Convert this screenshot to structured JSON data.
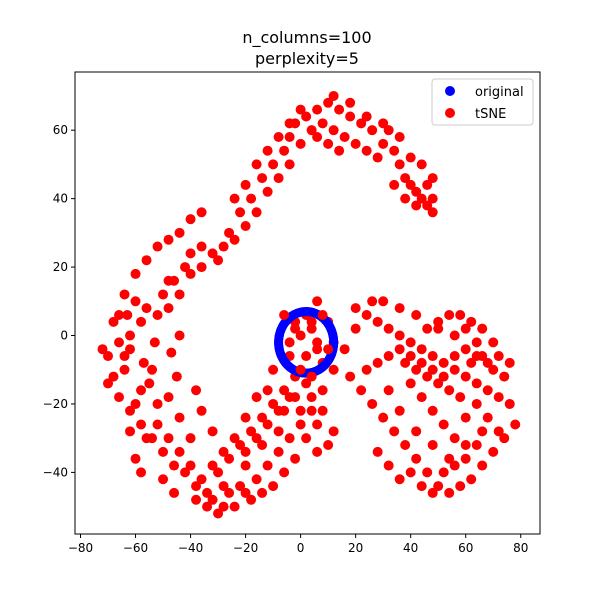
{
  "chart_data": {
    "type": "scatter",
    "title_line1": "n_columns=100",
    "title_line2": "perplexity=5",
    "xlabel": "",
    "ylabel": "",
    "xlim": [
      -82,
      87
    ],
    "ylim": [
      -58,
      77
    ],
    "xticks": [
      -80,
      -60,
      -40,
      -20,
      0,
      20,
      40,
      60,
      80
    ],
    "yticks": [
      -40,
      -20,
      0,
      20,
      40,
      60
    ],
    "grid": false,
    "legend_position": "upper right",
    "series": [
      {
        "name": "original",
        "color": "#0000ff",
        "shape": "ring",
        "center": [
          2,
          -2
        ],
        "radius_x": 10,
        "radius_y": 9,
        "points": 200
      },
      {
        "name": "tSNE",
        "color": "#ff0000",
        "shape": "clusters",
        "points": [
          [
            -70,
            -6
          ],
          [
            -68,
            -12
          ],
          [
            -66,
            -2
          ],
          [
            -64,
            -10
          ],
          [
            -62,
            0
          ],
          [
            -63,
            6
          ],
          [
            -60,
            10
          ],
          [
            -58,
            4
          ],
          [
            -57,
            -8
          ],
          [
            -55,
            -14
          ],
          [
            -53,
            -2
          ],
          [
            -52,
            6
          ],
          [
            -50,
            12
          ],
          [
            -48,
            8
          ],
          [
            -47,
            -5
          ],
          [
            -45,
            -12
          ],
          [
            -44,
            0
          ],
          [
            -46,
            16
          ],
          [
            -42,
            20
          ],
          [
            -40,
            24
          ],
          [
            -36,
            26
          ],
          [
            -30,
            22
          ],
          [
            -26,
            30
          ],
          [
            -22,
            36
          ],
          [
            -18,
            40
          ],
          [
            -14,
            46
          ],
          [
            -10,
            50
          ],
          [
            -6,
            54
          ],
          [
            -4,
            58
          ],
          [
            -2,
            62
          ],
          [
            2,
            64
          ],
          [
            6,
            66
          ],
          [
            10,
            68
          ],
          [
            14,
            66
          ],
          [
            18,
            64
          ],
          [
            22,
            62
          ],
          [
            26,
            60
          ],
          [
            30,
            56
          ],
          [
            34,
            54
          ],
          [
            36,
            50
          ],
          [
            38,
            46
          ],
          [
            40,
            44
          ],
          [
            42,
            42
          ],
          [
            44,
            40
          ],
          [
            46,
            38
          ],
          [
            48,
            36
          ],
          [
            44,
            50
          ],
          [
            48,
            46
          ],
          [
            40,
            52
          ],
          [
            32,
            60
          ],
          [
            -72,
            -4
          ],
          [
            -70,
            -14
          ],
          [
            -68,
            4
          ],
          [
            -66,
            -18
          ],
          [
            -64,
            12
          ],
          [
            -62,
            -22
          ],
          [
            -60,
            18
          ],
          [
            -58,
            -26
          ],
          [
            -56,
            22
          ],
          [
            -54,
            -30
          ],
          [
            -52,
            26
          ],
          [
            -50,
            -34
          ],
          [
            -48,
            28
          ],
          [
            -46,
            -38
          ],
          [
            -44,
            30
          ],
          [
            -42,
            -40
          ],
          [
            -40,
            34
          ],
          [
            -38,
            -44
          ],
          [
            -36,
            36
          ],
          [
            -34,
            -46
          ],
          [
            -32,
            -48
          ],
          [
            -28,
            -50
          ],
          [
            -24,
            -50
          ],
          [
            -20,
            -46
          ],
          [
            -16,
            -42
          ],
          [
            -12,
            -38
          ],
          [
            -8,
            -34
          ],
          [
            -4,
            -30
          ],
          [
            0,
            -26
          ],
          [
            4,
            -22
          ],
          [
            -30,
            -40
          ],
          [
            -26,
            -36
          ],
          [
            -22,
            -32
          ],
          [
            -18,
            -28
          ],
          [
            -14,
            -24
          ],
          [
            -10,
            -20
          ],
          [
            -6,
            -16
          ],
          [
            -2,
            -12
          ],
          [
            -20,
            -38
          ],
          [
            -28,
            -44
          ],
          [
            -40,
            -30
          ],
          [
            -44,
            -24
          ],
          [
            -48,
            -18
          ],
          [
            -52,
            -20
          ],
          [
            -56,
            -30
          ],
          [
            -60,
            -36
          ],
          [
            -62,
            -28
          ],
          [
            -58,
            -40
          ],
          [
            -50,
            -42
          ],
          [
            -46,
            -46
          ],
          [
            8,
            -16
          ],
          [
            12,
            -10
          ],
          [
            16,
            -4
          ],
          [
            20,
            2
          ],
          [
            24,
            6
          ],
          [
            28,
            4
          ],
          [
            32,
            2
          ],
          [
            36,
            0
          ],
          [
            40,
            -2
          ],
          [
            44,
            -4
          ],
          [
            48,
            -6
          ],
          [
            52,
            -8
          ],
          [
            56,
            -10
          ],
          [
            60,
            -12
          ],
          [
            64,
            -14
          ],
          [
            68,
            -16
          ],
          [
            72,
            -18
          ],
          [
            76,
            -20
          ],
          [
            78,
            -26
          ],
          [
            74,
            -30
          ],
          [
            70,
            -34
          ],
          [
            66,
            -38
          ],
          [
            62,
            -42
          ],
          [
            58,
            -44
          ],
          [
            54,
            -46
          ],
          [
            50,
            -44
          ],
          [
            46,
            -40
          ],
          [
            42,
            -36
          ],
          [
            38,
            -32
          ],
          [
            34,
            -28
          ],
          [
            30,
            -24
          ],
          [
            26,
            -20
          ],
          [
            22,
            -16
          ],
          [
            18,
            -12
          ],
          [
            40,
            -14
          ],
          [
            44,
            -18
          ],
          [
            48,
            -22
          ],
          [
            52,
            -26
          ],
          [
            56,
            -30
          ],
          [
            60,
            -24
          ],
          [
            64,
            -20
          ],
          [
            68,
            -24
          ],
          [
            72,
            -28
          ],
          [
            66,
            -28
          ],
          [
            60,
            -32
          ],
          [
            54,
            -36
          ],
          [
            48,
            -32
          ],
          [
            42,
            -28
          ],
          [
            36,
            -22
          ],
          [
            32,
            -16
          ],
          [
            38,
            -8
          ],
          [
            42,
            -10
          ],
          [
            46,
            -12
          ],
          [
            50,
            -14
          ],
          [
            54,
            -16
          ],
          [
            58,
            -18
          ],
          [
            62,
            -8
          ],
          [
            66,
            -6
          ],
          [
            70,
            -10
          ],
          [
            74,
            -12
          ],
          [
            56,
            0
          ],
          [
            60,
            2
          ],
          [
            64,
            -2
          ],
          [
            50,
            4
          ],
          [
            46,
            2
          ],
          [
            42,
            6
          ],
          [
            36,
            8
          ],
          [
            30,
            10
          ],
          [
            26,
            10
          ],
          [
            20,
            8
          ],
          [
            2,
            6
          ],
          [
            4,
            2
          ],
          [
            6,
            -4
          ],
          [
            8,
            -8
          ],
          [
            0,
            0
          ],
          [
            -2,
            4
          ],
          [
            -4,
            -6
          ],
          [
            6,
            10
          ],
          [
            10,
            4
          ],
          [
            12,
            -2
          ],
          [
            -10,
            -10
          ],
          [
            -12,
            -16
          ],
          [
            -6,
            -22
          ],
          [
            -2,
            -18
          ],
          [
            2,
            -14
          ],
          [
            6,
            -26
          ],
          [
            -16,
            -18
          ],
          [
            -20,
            -24
          ],
          [
            -8,
            -28
          ],
          [
            -14,
            -32
          ],
          [
            -36,
            -22
          ],
          [
            -32,
            -28
          ],
          [
            -38,
            -16
          ],
          [
            -54,
            -10
          ],
          [
            -58,
            -16
          ],
          [
            -62,
            -4
          ],
          [
            -66,
            6
          ],
          [
            -64,
            -6
          ],
          [
            -60,
            -20
          ],
          [
            -56,
            8
          ],
          [
            -48,
            16
          ],
          [
            -44,
            12
          ],
          [
            -40,
            18
          ],
          [
            -36,
            20
          ],
          [
            -32,
            24
          ],
          [
            -28,
            26
          ],
          [
            -24,
            28
          ],
          [
            -20,
            32
          ],
          [
            -16,
            36
          ],
          [
            -12,
            42
          ],
          [
            -8,
            46
          ],
          [
            -4,
            50
          ],
          [
            0,
            56
          ],
          [
            4,
            60
          ],
          [
            8,
            62
          ],
          [
            12,
            60
          ],
          [
            16,
            58
          ],
          [
            20,
            56
          ],
          [
            24,
            54
          ],
          [
            28,
            52
          ],
          [
            34,
            44
          ],
          [
            38,
            40
          ],
          [
            42,
            38
          ],
          [
            46,
            44
          ],
          [
            48,
            40
          ],
          [
            36,
            58
          ],
          [
            30,
            62
          ],
          [
            24,
            64
          ],
          [
            18,
            68
          ],
          [
            12,
            70
          ],
          [
            -24,
            40
          ],
          [
            -20,
            44
          ],
          [
            -16,
            50
          ],
          [
            -12,
            54
          ],
          [
            -8,
            58
          ],
          [
            -4,
            62
          ],
          [
            0,
            66
          ],
          [
            6,
            58
          ],
          [
            10,
            56
          ],
          [
            14,
            54
          ],
          [
            -52,
            -26
          ],
          [
            -48,
            -30
          ],
          [
            -44,
            -34
          ],
          [
            -40,
            -38
          ],
          [
            -36,
            -42
          ],
          [
            -32,
            -38
          ],
          [
            -28,
            -34
          ],
          [
            -24,
            -30
          ],
          [
            -20,
            -34
          ],
          [
            -16,
            -30
          ],
          [
            -12,
            -26
          ],
          [
            -8,
            -22
          ],
          [
            -4,
            -18
          ],
          [
            0,
            -22
          ],
          [
            4,
            -18
          ],
          [
            8,
            -22
          ],
          [
            12,
            -28
          ],
          [
            10,
            -32
          ],
          [
            6,
            -34
          ],
          [
            2,
            -30
          ],
          [
            -2,
            -36
          ],
          [
            -6,
            -40
          ],
          [
            -10,
            -44
          ],
          [
            -14,
            -46
          ],
          [
            -18,
            -48
          ],
          [
            -22,
            -44
          ],
          [
            -26,
            -46
          ],
          [
            -30,
            -52
          ],
          [
            -34,
            -50
          ],
          [
            -38,
            -48
          ],
          [
            28,
            -34
          ],
          [
            32,
            -38
          ],
          [
            36,
            -42
          ],
          [
            40,
            -40
          ],
          [
            44,
            -44
          ],
          [
            48,
            -46
          ],
          [
            52,
            -40
          ],
          [
            56,
            -38
          ],
          [
            60,
            -36
          ],
          [
            64,
            -32
          ],
          [
            24,
            -10
          ],
          [
            28,
            -8
          ],
          [
            32,
            -6
          ],
          [
            36,
            -4
          ],
          [
            40,
            -6
          ],
          [
            44,
            -8
          ],
          [
            48,
            -10
          ],
          [
            52,
            -12
          ],
          [
            56,
            -6
          ],
          [
            60,
            -4
          ],
          [
            64,
            -6
          ],
          [
            68,
            -8
          ],
          [
            72,
            -6
          ],
          [
            76,
            -8
          ],
          [
            70,
            -2
          ],
          [
            66,
            2
          ],
          [
            62,
            4
          ],
          [
            58,
            6
          ],
          [
            54,
            6
          ],
          [
            50,
            2
          ]
        ]
      }
    ]
  }
}
